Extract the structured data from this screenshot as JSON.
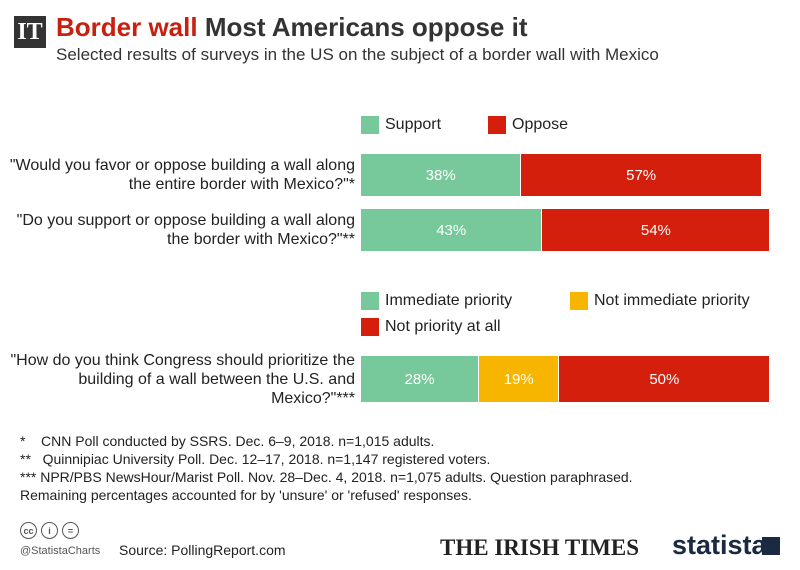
{
  "header": {
    "logo": "IT",
    "title_highlight": "Border wall",
    "title": "Most Americans oppose it",
    "subtitle": "Selected results of surveys in the US on the subject of a border wall with Mexico"
  },
  "chart_data": [
    {
      "type": "stacked-bar",
      "categories": [
        "\"Would you favor or oppose building a wall along the entire border with Mexico?\"*",
        "\"Do you support or oppose building a wall along the border with Mexico?\"**"
      ],
      "series": [
        {
          "name": "Support",
          "color": "#77c99b",
          "values": [
            38,
            43
          ],
          "value_labels": [
            "38%",
            "43%"
          ]
        },
        {
          "name": "Oppose",
          "color": "#d41f0c",
          "values": [
            57,
            54
          ],
          "value_labels": [
            "57%",
            "54%"
          ]
        }
      ]
    },
    {
      "type": "stacked-bar",
      "categories": [
        "\"How do you think Congress should prioritize the building of a wall between the U.S. and Mexico?\"***"
      ],
      "series": [
        {
          "name": "Immediate priority",
          "color": "#77c99b",
          "values": [
            28
          ],
          "value_labels": [
            "28%"
          ]
        },
        {
          "name": "Not immediate priority",
          "color": "#f7b500",
          "values": [
            19
          ],
          "value_labels": [
            "19%"
          ]
        },
        {
          "name": "Not priority at all",
          "color": "#d41f0c",
          "values": [
            50
          ],
          "value_labels": [
            "50%"
          ]
        }
      ]
    }
  ],
  "footnotes": [
    "*    CNN Poll conducted by SSRS. Dec. 6–9, 2018. n=1,015 adults.",
    "**   Quinnipiac University Poll. Dec. 12–17, 2018. n=1,147 registered voters.",
    "*** NPR/PBS NewsHour/Marist Poll. Nov. 28–Dec. 4, 2018. n=1,075 adults. Question paraphrased.",
    "Remaining percentages accounted for by 'unsure' or 'refused' responses."
  ],
  "footer": {
    "handle": "@StatistaCharts",
    "source": "Source: PollingReport.com",
    "partner": "THE IRISH TIMES",
    "brand": "statista"
  }
}
